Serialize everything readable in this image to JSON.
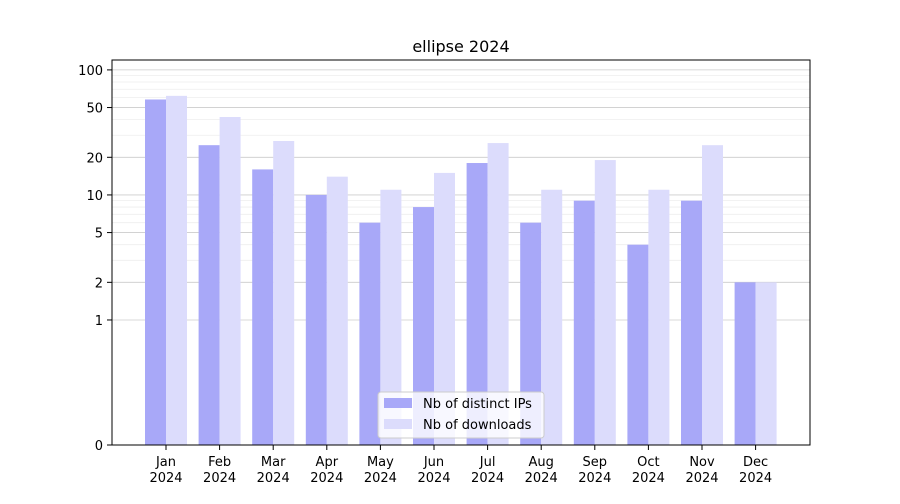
{
  "chart_data": {
    "type": "bar",
    "title": "ellipse 2024",
    "xlabel": "",
    "ylabel": "",
    "yscale": "symlog",
    "ylim": [
      0,
      120
    ],
    "yticks": [
      0,
      1,
      2,
      5,
      10,
      20,
      50,
      100
    ],
    "grid": true,
    "legend_position": "bottom-center",
    "categories": [
      [
        "Jan",
        "2024"
      ],
      [
        "Feb",
        "2024"
      ],
      [
        "Mar",
        "2024"
      ],
      [
        "Apr",
        "2024"
      ],
      [
        "May",
        "2024"
      ],
      [
        "Jun",
        "2024"
      ],
      [
        "Jul",
        "2024"
      ],
      [
        "Aug",
        "2024"
      ],
      [
        "Sep",
        "2024"
      ],
      [
        "Oct",
        "2024"
      ],
      [
        "Nov",
        "2024"
      ],
      [
        "Dec",
        "2024"
      ]
    ],
    "series": [
      {
        "name": "Nb of distinct IPs",
        "color": "#a8a8f8",
        "values": [
          58,
          25,
          16,
          10,
          6,
          8,
          18,
          6,
          9,
          4,
          9,
          2
        ]
      },
      {
        "name": "Nb of downloads",
        "color": "#dcdcfc",
        "values": [
          62,
          42,
          27,
          14,
          11,
          15,
          26,
          11,
          19,
          11,
          25,
          2
        ]
      }
    ]
  }
}
